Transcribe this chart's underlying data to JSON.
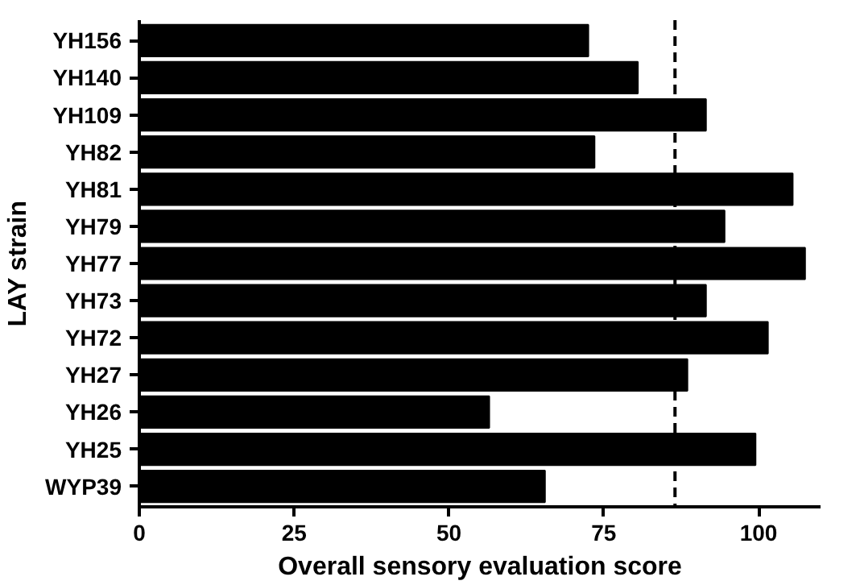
{
  "chart_data": {
    "type": "bar",
    "orientation": "horizontal",
    "xlabel": "Overall sensory evaluation score",
    "ylabel": "LAY strain",
    "categories": [
      "YH156",
      "YH140",
      "YH109",
      "YH82",
      "YH81",
      "YH79",
      "YH77",
      "YH73",
      "YH72",
      "YH27",
      "YH26",
      "YH25",
      "WYP39"
    ],
    "values": [
      72.5,
      80.5,
      91.5,
      73.5,
      105.5,
      94.5,
      107.5,
      91.5,
      101.5,
      88.5,
      56.5,
      99.5,
      65.5
    ],
    "color": "#000000",
    "xlim": [
      0,
      110
    ],
    "xticks": [
      0,
      25,
      50,
      75,
      100
    ],
    "grid": false,
    "ref_lines": [
      {
        "axis": "x",
        "value": 86.5,
        "line_style": "dashed",
        "color": "#000000"
      }
    ]
  }
}
